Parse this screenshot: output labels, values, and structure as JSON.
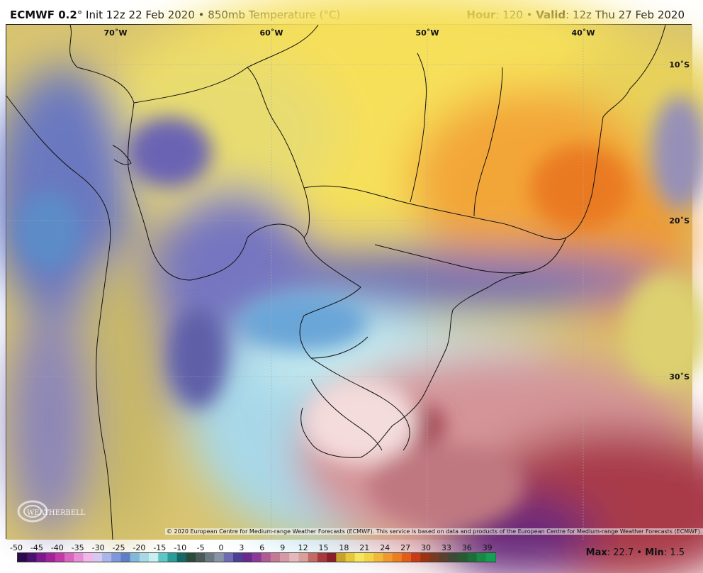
{
  "header": {
    "model": "ECMWF 0.2",
    "deg": "°",
    "init": " Init 12z 22 Feb 2020",
    "sep": " • ",
    "product": "850mb Temperature (°C)",
    "hour_label": "Hour",
    "hour_value": ": 120",
    "valid_label": "Valid",
    "valid_value": ": 12z Thu 27 Feb 2020"
  },
  "map": {
    "longitude_labels": [
      "70˚W",
      "60˚W",
      "50˚W",
      "40˚W"
    ],
    "latitude_labels": [
      "10˚S",
      "20˚S",
      "30˚S"
    ],
    "credit": "© 2020 European Centre for Medium-range Weather Forecasts (ECMWF). This service is based on data and products of the European Centre for Medium-range Weather Forecasts (ECMWF).",
    "logo_text": "WEATHERBELL"
  },
  "colorbar": {
    "ticks": [
      "-50",
      "-45",
      "-40",
      "-35",
      "-30",
      "-25",
      "-20",
      "-15",
      "-10",
      "-5",
      "0",
      "3",
      "6",
      "9",
      "12",
      "15",
      "18",
      "21",
      "24",
      "27",
      "30",
      "33",
      "36",
      "39"
    ],
    "colors": [
      "#2a0a4a",
      "#4a1070",
      "#7a1a8c",
      "#a0249a",
      "#c23aa6",
      "#d866c0",
      "#e68ed6",
      "#f2b6ea",
      "#d6c8f0",
      "#aab6ea",
      "#7f98da",
      "#5f7ec8",
      "#82b8d8",
      "#a8d8e6",
      "#c8eef0",
      "#5ec6c8",
      "#2a9c9a",
      "#146866",
      "#2a4a3a",
      "#4a5a5a",
      "#6a7a80",
      "#8a94a8",
      "#6e6cb0",
      "#4e3f94",
      "#6a2a8c",
      "#8c3a9a",
      "#b05a94",
      "#c47a92",
      "#d69aa4",
      "#e4b8bc",
      "#d8a09a",
      "#c46a64",
      "#a83a3c",
      "#8a1f2a",
      "#c8a02a",
      "#e4c83a",
      "#f6e65c",
      "#f4d444",
      "#f2b83a",
      "#ee9a2e",
      "#ec7e22",
      "#e45c1a",
      "#c63c16",
      "#9c3414",
      "#7a3a22",
      "#5a4030",
      "#3e4a36",
      "#2a5a30",
      "#1c6e3a",
      "#188a44",
      "#14a050"
    ]
  },
  "stats": {
    "max_label": "Max",
    "max_value": ": 22.7",
    "min_label": "Min",
    "min_value": ": 1.5",
    "sep": " • "
  }
}
